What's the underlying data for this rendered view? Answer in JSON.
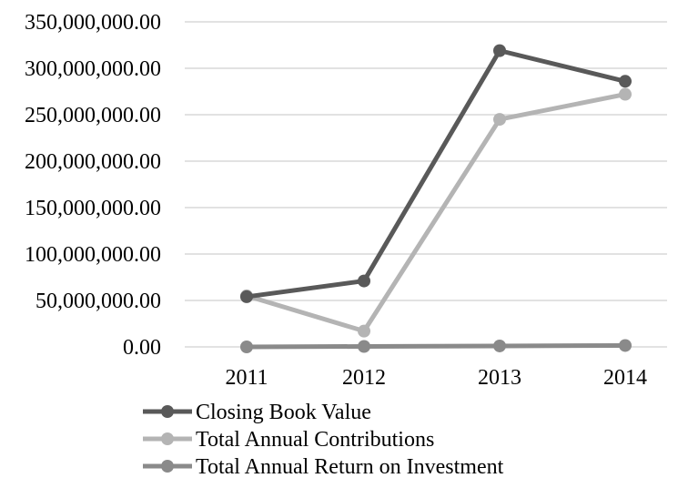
{
  "chart_data": {
    "type": "line",
    "title": "",
    "xlabel": "",
    "ylabel": "",
    "categories": [
      "2011",
      "2012",
      "2013",
      "2014"
    ],
    "ylim": [
      0,
      350000000
    ],
    "y_ticks": [
      0,
      50000000,
      100000000,
      150000000,
      200000000,
      250000000,
      300000000,
      350000000
    ],
    "y_tick_labels": [
      "0.00",
      "50,000,000.00",
      "100,000,000.00",
      "150,000,000.00",
      "200,000,000.00",
      "250,000,000.00",
      "300,000,000.00",
      "350,000,000.00"
    ],
    "grid": true,
    "legend_position": "bottom",
    "series": [
      {
        "name": "Closing Book Value",
        "color": "#595959",
        "values": [
          54000000,
          71000000,
          319000000,
          286000000
        ]
      },
      {
        "name": "Total Annual Contributions",
        "color": "#b4b4b4",
        "values": [
          55000000,
          17000000,
          245000000,
          272000000
        ]
      },
      {
        "name": "Total Annual Return on Investment",
        "color": "#8a8a8a",
        "values": [
          0,
          500000,
          1000000,
          1500000
        ]
      }
    ]
  }
}
